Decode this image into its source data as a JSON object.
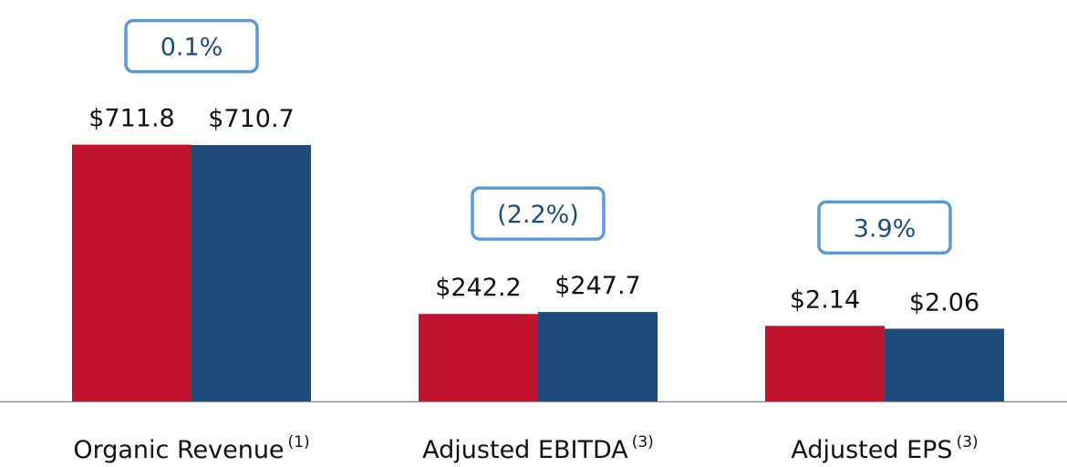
{
  "chart_data": [
    {
      "type": "bar",
      "category": "Organic Revenue",
      "note": "(1)",
      "values": [
        711.8,
        710.7
      ],
      "value_labels": [
        "$711.8",
        "$710.7"
      ],
      "colors": [
        "#c0142f",
        "#1f4b7a"
      ],
      "ylim": [
        0,
        860
      ],
      "annotation": "0.1%"
    },
    {
      "type": "bar",
      "category": "Adjusted EBITDA",
      "note": "(3)",
      "values": [
        242.2,
        247.7
      ],
      "value_labels": [
        "$242.2",
        "$247.7"
      ],
      "colors": [
        "#c0142f",
        "#1f4b7a"
      ],
      "ylim": [
        0,
        860
      ],
      "annotation": "(2.2%)"
    },
    {
      "type": "bar",
      "category": "Adjusted EPS",
      "note": "(3)",
      "values": [
        2.14,
        2.06
      ],
      "value_labels": [
        "$2.14",
        "$2.06"
      ],
      "colors": [
        "#c0142f",
        "#1f4b7a"
      ],
      "ylim": [
        0,
        8.8
      ],
      "annotation": "3.9%"
    }
  ]
}
